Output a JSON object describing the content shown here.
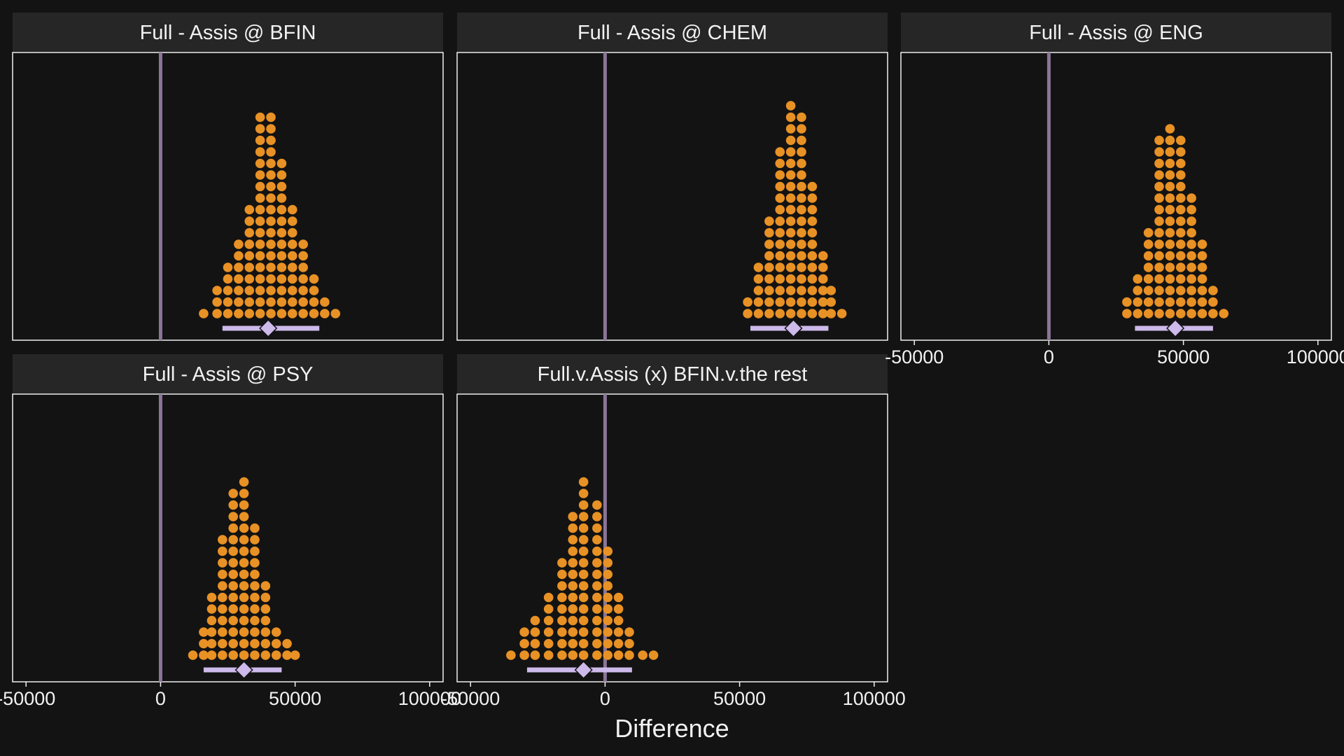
{
  "chart_data": {
    "type": "dotplot",
    "xlabel": "Difference",
    "reference_line": 0,
    "xlim": [
      -55000,
      105000
    ],
    "x_ticks": [
      -50000,
      0,
      50000,
      100000
    ],
    "x_tick_labels": [
      "-50000",
      "0",
      "50000",
      "100000"
    ],
    "colors": {
      "dots": "#e89125",
      "interval": "#cdb9ea",
      "reference": "#8a7597",
      "background": "#131313",
      "strip": "#262626"
    },
    "panels": [
      {
        "title": "Full - Assis @ BFIN",
        "mean": 40000,
        "interval": [
          23000,
          59000
        ],
        "bins": [
          [
            16000,
            1
          ],
          [
            21000,
            3
          ],
          [
            25000,
            5
          ],
          [
            29000,
            7
          ],
          [
            33000,
            10
          ],
          [
            37000,
            18
          ],
          [
            41000,
            18
          ],
          [
            45000,
            14
          ],
          [
            49000,
            10
          ],
          [
            53000,
            7
          ],
          [
            57000,
            4
          ],
          [
            61000,
            2
          ],
          [
            65000,
            1
          ]
        ]
      },
      {
        "title": "Full - Assis @ CHEM",
        "mean": 70000,
        "interval": [
          54000,
          83000
        ],
        "bins": [
          [
            53000,
            2
          ],
          [
            57000,
            5
          ],
          [
            61000,
            9
          ],
          [
            65000,
            15
          ],
          [
            69000,
            19
          ],
          [
            73000,
            18
          ],
          [
            77000,
            12
          ],
          [
            81000,
            6
          ],
          [
            84000,
            3
          ],
          [
            88000,
            1
          ]
        ]
      },
      {
        "title": "Full - Assis @ ENG",
        "mean": 47000,
        "interval": [
          32000,
          61000
        ],
        "bins": [
          [
            29000,
            2
          ],
          [
            33000,
            4
          ],
          [
            37000,
            8
          ],
          [
            41000,
            16
          ],
          [
            45000,
            17
          ],
          [
            49000,
            16
          ],
          [
            53000,
            11
          ],
          [
            57000,
            7
          ],
          [
            61000,
            3
          ],
          [
            65000,
            1
          ]
        ]
      },
      {
        "title": "Full - Assis @ PSY",
        "mean": 31000,
        "interval": [
          16000,
          45000
        ],
        "bins": [
          [
            12000,
            1
          ],
          [
            16000,
            3
          ],
          [
            19000,
            6
          ],
          [
            23000,
            11
          ],
          [
            27000,
            15
          ],
          [
            31000,
            16
          ],
          [
            35000,
            12
          ],
          [
            39000,
            7
          ],
          [
            43000,
            3
          ],
          [
            47000,
            2
          ],
          [
            50000,
            1
          ]
        ]
      },
      {
        "title": "Full.v.Assis (x) BFIN.v.the rest",
        "mean": -8000,
        "interval": [
          -29000,
          10000
        ],
        "bins": [
          [
            -35000,
            1
          ],
          [
            -30000,
            3
          ],
          [
            -26000,
            4
          ],
          [
            -21000,
            6
          ],
          [
            -16000,
            9
          ],
          [
            -12000,
            13
          ],
          [
            -8000,
            16
          ],
          [
            -3000,
            14
          ],
          [
            1000,
            10
          ],
          [
            5000,
            6
          ],
          [
            9000,
            3
          ],
          [
            14000,
            1
          ],
          [
            18000,
            1
          ]
        ]
      }
    ]
  }
}
